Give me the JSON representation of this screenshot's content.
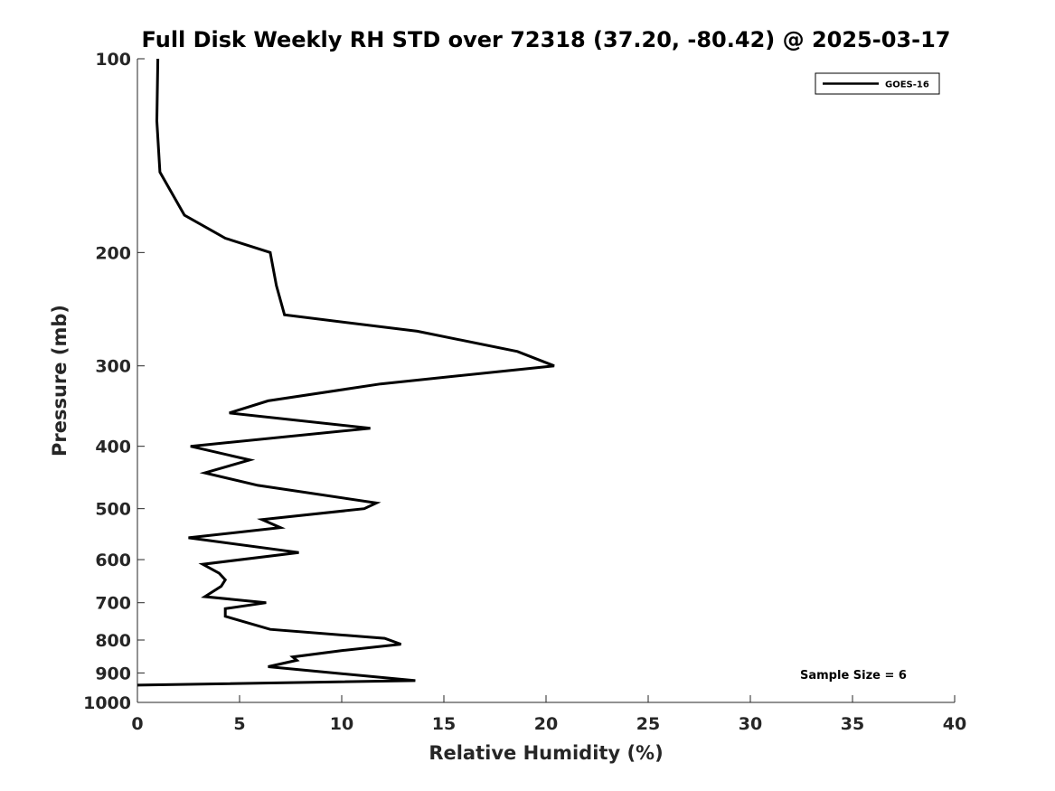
{
  "chart_data": {
    "type": "line",
    "title": "Full Disk Weekly RH STD over 72318 (37.20, -80.42) @ 2025-03-17",
    "xlabel": "Relative Humidity (%)",
    "ylabel": "Pressure (mb)",
    "xlim": [
      0,
      40
    ],
    "ylim": [
      100,
      1000
    ],
    "y_scale": "log",
    "y_reversed": true,
    "grid": false,
    "legend_position": "top-right",
    "x_ticks": [
      0,
      5,
      10,
      15,
      20,
      25,
      30,
      35,
      40
    ],
    "y_ticks": [
      100,
      200,
      300,
      400,
      500,
      600,
      700,
      800,
      900,
      1000
    ],
    "annotation": "Sample Size = 6",
    "series": [
      {
        "name": "GOES-16",
        "color": "#000000",
        "points": [
          [
            1.0,
            100
          ],
          [
            0.95,
            125
          ],
          [
            1.1,
            150
          ],
          [
            2.3,
            175
          ],
          [
            4.3,
            190
          ],
          [
            6.5,
            200
          ],
          [
            6.8,
            225
          ],
          [
            7.2,
            250
          ],
          [
            13.7,
            265
          ],
          [
            18.6,
            285
          ],
          [
            20.4,
            300
          ],
          [
            11.9,
            320
          ],
          [
            6.4,
            340
          ],
          [
            4.5,
            355
          ],
          [
            11.4,
            375
          ],
          [
            2.6,
            400
          ],
          [
            5.5,
            420
          ],
          [
            3.3,
            440
          ],
          [
            5.9,
            460
          ],
          [
            11.7,
            490
          ],
          [
            11.1,
            500
          ],
          [
            6.1,
            520
          ],
          [
            7.0,
            535
          ],
          [
            2.5,
            555
          ],
          [
            7.9,
            585
          ],
          [
            3.2,
            610
          ],
          [
            4.0,
            630
          ],
          [
            4.3,
            645
          ],
          [
            4.1,
            660
          ],
          [
            3.3,
            685
          ],
          [
            6.3,
            700
          ],
          [
            4.3,
            715
          ],
          [
            4.3,
            735
          ],
          [
            6.5,
            770
          ],
          [
            12.1,
            795
          ],
          [
            12.9,
            812
          ],
          [
            10.1,
            830
          ],
          [
            7.6,
            850
          ],
          [
            7.8,
            860
          ],
          [
            6.4,
            880
          ],
          [
            13.6,
            925
          ],
          [
            0.0,
            940
          ]
        ]
      }
    ]
  }
}
